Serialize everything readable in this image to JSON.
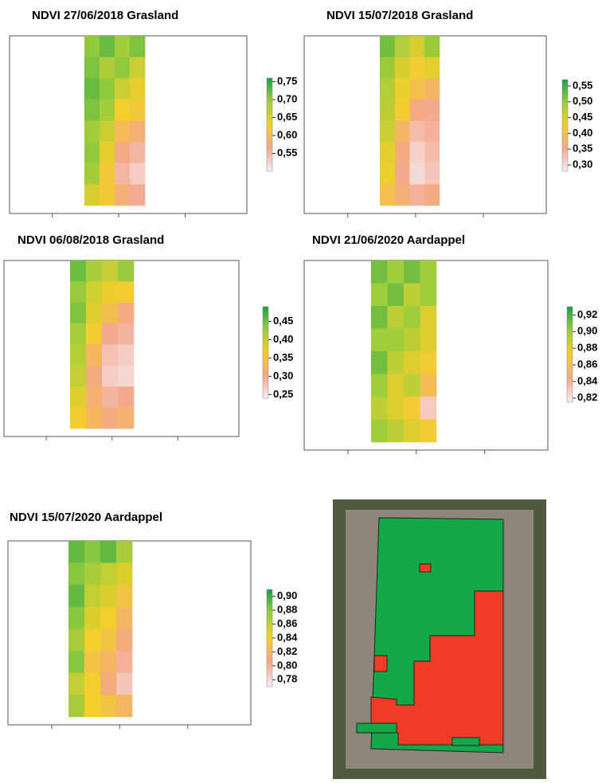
{
  "chart_data": [
    {
      "type": "heatmap",
      "title": "NDVI 27/06/2018 Grasland",
      "clim": [
        0.5,
        0.76
      ],
      "cticks": [
        {
          "value": 0.75,
          "label": "0,75"
        },
        {
          "value": 0.7,
          "label": "0,70"
        },
        {
          "value": 0.65,
          "label": "0,65"
        },
        {
          "value": 0.6,
          "label": "0,60"
        },
        {
          "value": 0.55,
          "label": "0,55"
        }
      ],
      "values": [
        [
          0.7,
          0.72,
          0.69,
          0.71
        ],
        [
          0.71,
          0.68,
          0.7,
          0.66
        ],
        [
          0.72,
          0.7,
          0.66,
          0.64
        ],
        [
          0.71,
          0.69,
          0.63,
          0.62
        ],
        [
          0.69,
          0.66,
          0.6,
          0.58
        ],
        [
          0.7,
          0.64,
          0.57,
          0.55
        ],
        [
          0.69,
          0.62,
          0.55,
          0.53
        ],
        [
          0.65,
          0.62,
          0.58,
          0.56
        ]
      ]
    },
    {
      "type": "heatmap",
      "title": "NDVI 15/07/2018 Grasland",
      "clim": [
        0.28,
        0.57
      ],
      "cticks": [
        {
          "value": 0.55,
          "label": "0,55"
        },
        {
          "value": 0.5,
          "label": "0,50"
        },
        {
          "value": 0.45,
          "label": "0,45"
        },
        {
          "value": 0.4,
          "label": "0,40"
        },
        {
          "value": 0.35,
          "label": "0,35"
        },
        {
          "value": 0.3,
          "label": "0,30"
        }
      ],
      "values": [
        [
          0.52,
          0.48,
          0.45,
          0.5
        ],
        [
          0.5,
          0.45,
          0.42,
          0.44
        ],
        [
          0.48,
          0.43,
          0.4,
          0.38
        ],
        [
          0.47,
          0.42,
          0.36,
          0.35
        ],
        [
          0.46,
          0.38,
          0.33,
          0.34
        ],
        [
          0.44,
          0.36,
          0.31,
          0.33
        ],
        [
          0.43,
          0.35,
          0.3,
          0.32
        ],
        [
          0.4,
          0.37,
          0.34,
          0.36
        ]
      ]
    },
    {
      "type": "heatmap",
      "title": "NDVI 06/08/2018 Grasland",
      "clim": [
        0.24,
        0.49
      ],
      "cticks": [
        {
          "value": 0.45,
          "label": "0,45"
        },
        {
          "value": 0.4,
          "label": "0,40"
        },
        {
          "value": 0.35,
          "label": "0,35"
        },
        {
          "value": 0.3,
          "label": "0,30"
        },
        {
          "value": 0.25,
          "label": "0,25"
        }
      ],
      "values": [
        [
          0.45,
          0.42,
          0.4,
          0.43
        ],
        [
          0.43,
          0.39,
          0.37,
          0.36
        ],
        [
          0.44,
          0.38,
          0.34,
          0.31
        ],
        [
          0.42,
          0.36,
          0.3,
          0.29
        ],
        [
          0.41,
          0.33,
          0.28,
          0.27
        ],
        [
          0.4,
          0.31,
          0.27,
          0.26
        ],
        [
          0.38,
          0.32,
          0.29,
          0.3
        ],
        [
          0.36,
          0.33,
          0.31,
          0.32
        ]
      ]
    },
    {
      "type": "heatmap",
      "title": "NDVI 21/06/2020 Aardappel",
      "clim": [
        0.815,
        0.93
      ],
      "cticks": [
        {
          "value": 0.92,
          "label": "0,92"
        },
        {
          "value": 0.9,
          "label": "0,90"
        },
        {
          "value": 0.88,
          "label": "0,88"
        },
        {
          "value": 0.86,
          "label": "0,86"
        },
        {
          "value": 0.84,
          "label": "0,84"
        },
        {
          "value": 0.82,
          "label": "0,82"
        }
      ],
      "values": [
        [
          0.91,
          0.9,
          0.91,
          0.9
        ],
        [
          0.9,
          0.91,
          0.89,
          0.9
        ],
        [
          0.91,
          0.89,
          0.9,
          0.88
        ],
        [
          0.9,
          0.9,
          0.89,
          0.88
        ],
        [
          0.91,
          0.89,
          0.88,
          0.87
        ],
        [
          0.9,
          0.88,
          0.89,
          0.86
        ],
        [
          0.89,
          0.88,
          0.87,
          0.83
        ],
        [
          0.9,
          0.89,
          0.88,
          0.87
        ]
      ]
    },
    {
      "type": "heatmap",
      "title": "NDVI 15/07/2020 Aardappel",
      "clim": [
        0.77,
        0.91
      ],
      "cticks": [
        {
          "value": 0.9,
          "label": "0,90"
        },
        {
          "value": 0.88,
          "label": "0,88"
        },
        {
          "value": 0.86,
          "label": "0,86"
        },
        {
          "value": 0.84,
          "label": "0,84"
        },
        {
          "value": 0.82,
          "label": "0,82"
        },
        {
          "value": 0.8,
          "label": "0,80"
        },
        {
          "value": 0.78,
          "label": "0,78"
        }
      ],
      "values": [
        [
          0.89,
          0.88,
          0.89,
          0.87
        ],
        [
          0.88,
          0.87,
          0.86,
          0.85
        ],
        [
          0.89,
          0.86,
          0.85,
          0.83
        ],
        [
          0.88,
          0.85,
          0.84,
          0.82
        ],
        [
          0.87,
          0.84,
          0.83,
          0.81
        ],
        [
          0.88,
          0.83,
          0.82,
          0.8
        ],
        [
          0.86,
          0.84,
          0.81,
          0.79
        ],
        [
          0.87,
          0.84,
          0.83,
          0.82
        ]
      ]
    }
  ]
}
